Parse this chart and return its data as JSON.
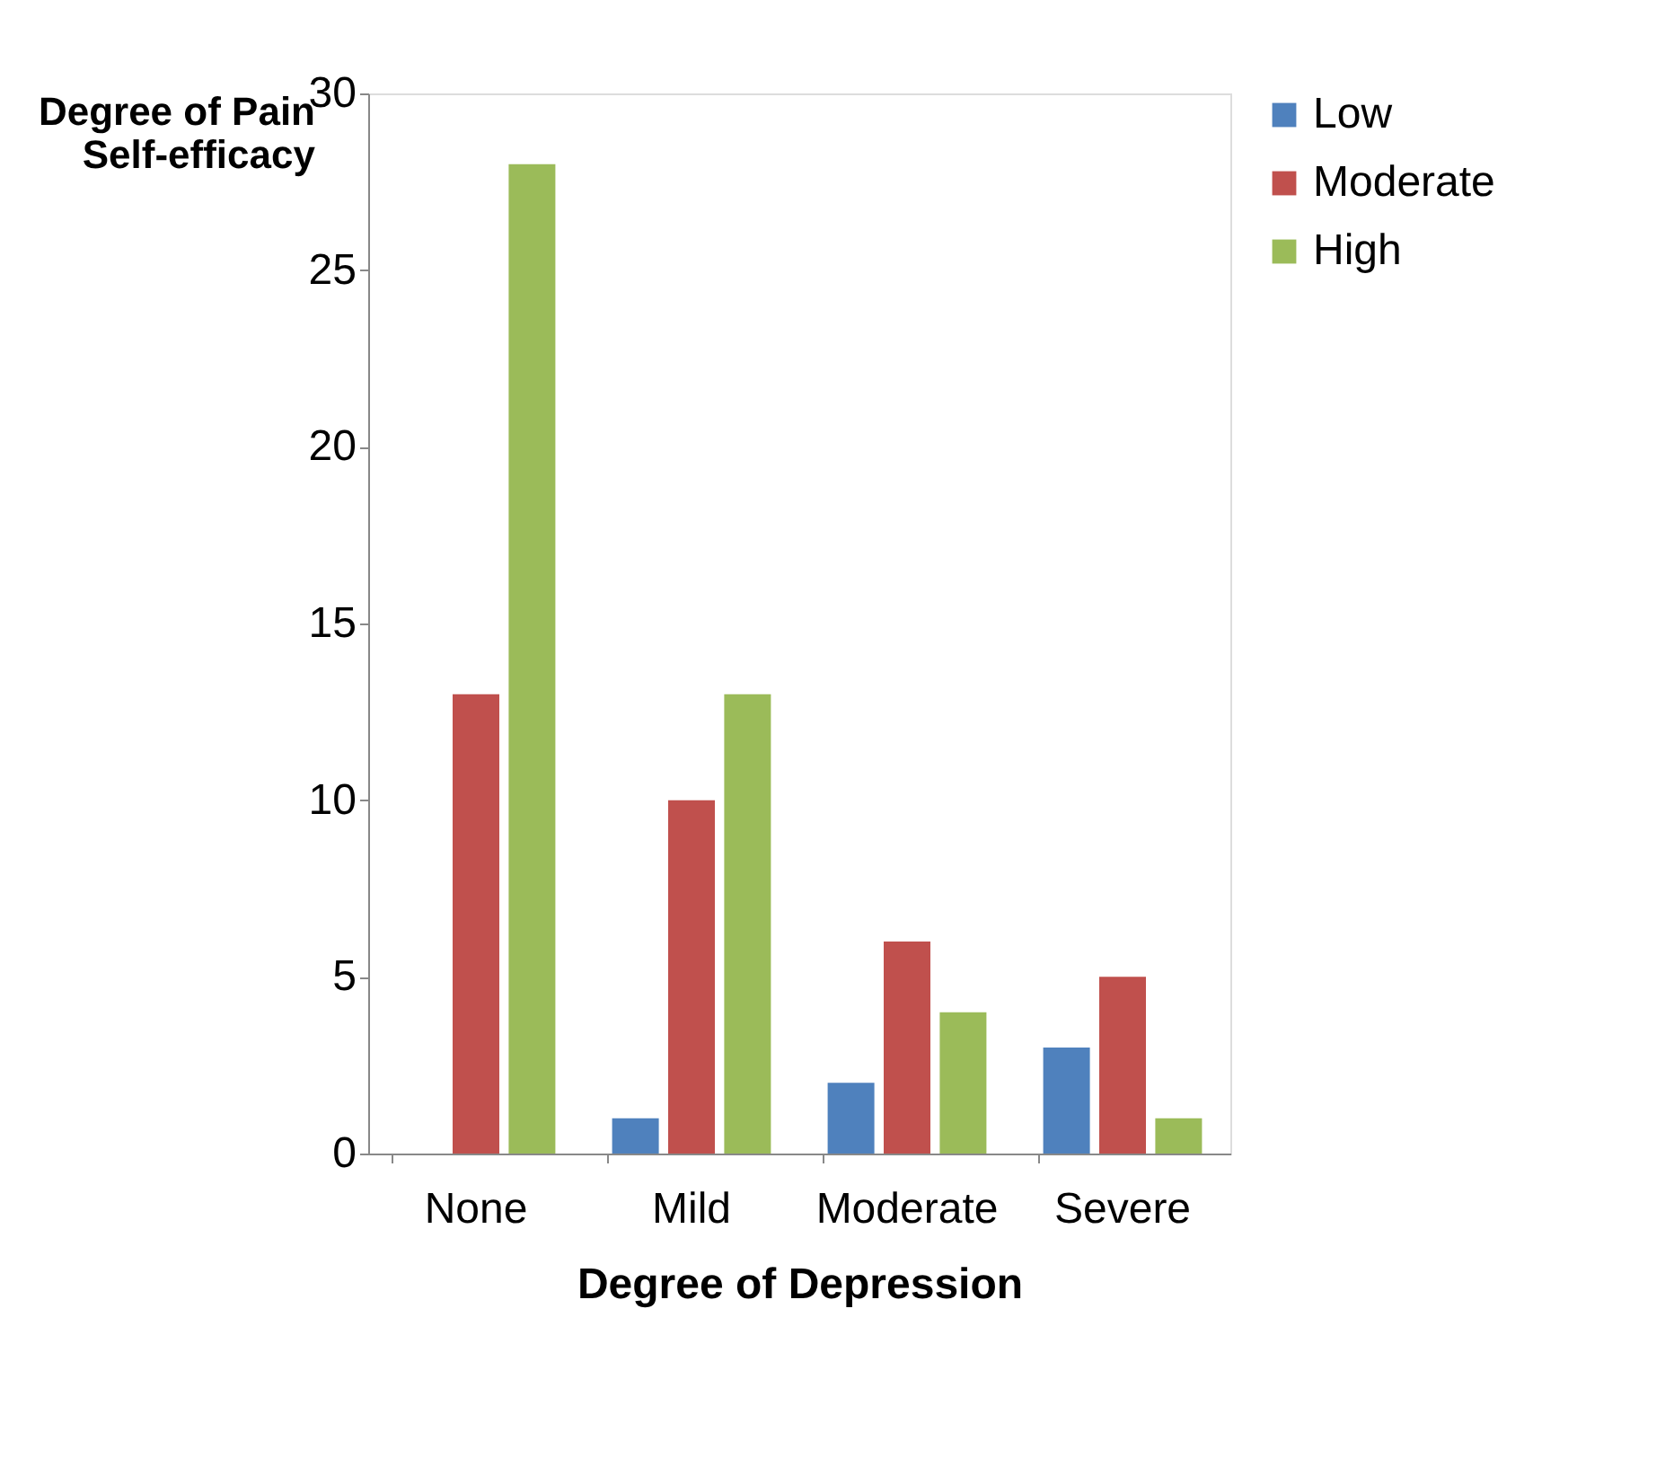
{
  "chart_data": {
    "type": "bar",
    "xlabel": "Degree of Depression",
    "ylabel": "Degree of Pain Self-efficacy",
    "categories": [
      "None",
      "Mild",
      "Moderate",
      "Severe"
    ],
    "series": [
      {
        "name": "Low",
        "color": "#4f81bd",
        "values": [
          0,
          1,
          2,
          3
        ]
      },
      {
        "name": "Moderate",
        "color": "#c0504d",
        "values": [
          13,
          10,
          6,
          5
        ]
      },
      {
        "name": "High",
        "color": "#9bbb59",
        "values": [
          28,
          13,
          4,
          1
        ]
      }
    ],
    "ylim": [
      0,
      30
    ],
    "yticks": [
      0,
      5,
      10,
      15,
      20,
      25,
      30
    ],
    "grid": false,
    "legend": "right"
  }
}
